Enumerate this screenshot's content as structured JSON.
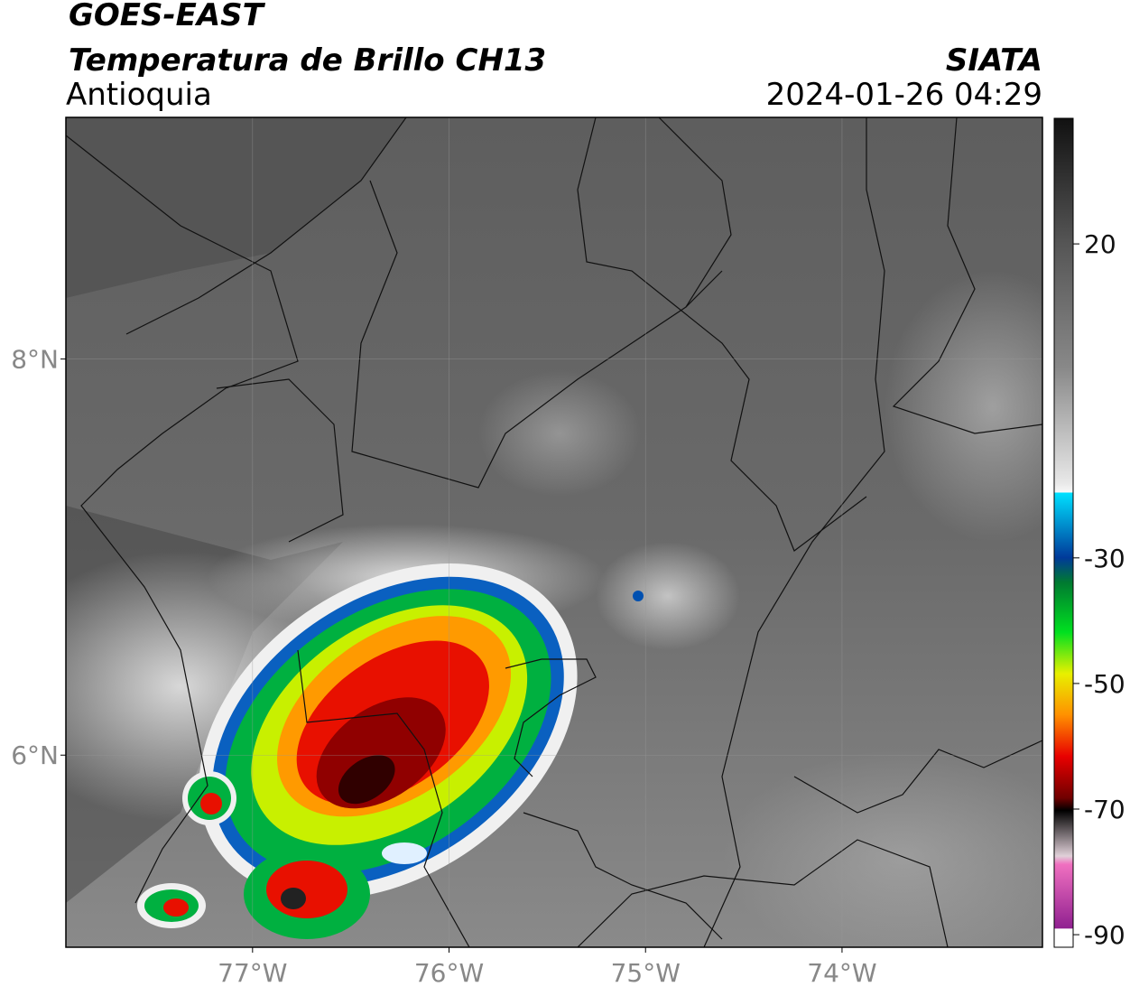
{
  "header": {
    "title": "GOES-EAST",
    "product": "Temperatura de Brillo CH13",
    "region": "Antioquia",
    "source": "SIATA",
    "datetime": "2024-01-26 04:29"
  },
  "map": {
    "xlim": [
      -77.95,
      -72.98
    ],
    "ylim": [
      5.03,
      9.22
    ],
    "xticks": [
      {
        "value": -77,
        "label": "77°W"
      },
      {
        "value": -76,
        "label": "76°W"
      },
      {
        "value": -75,
        "label": "75°W"
      },
      {
        "value": -74,
        "label": "74°W"
      }
    ],
    "yticks": [
      {
        "value": 8,
        "label": "8°N"
      },
      {
        "value": 6,
        "label": "6°N"
      }
    ]
  },
  "colorbar": {
    "range": [
      -92,
      40
    ],
    "ticks": [
      20,
      -30,
      -50,
      -70,
      -90
    ]
  }
}
